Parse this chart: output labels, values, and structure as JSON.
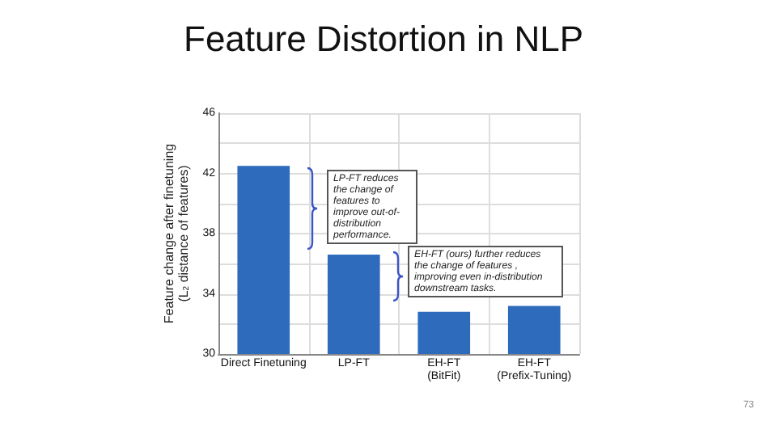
{
  "chart_data": {
    "type": "bar",
    "title": "Feature Distortion in NLP",
    "ylabel": "Feature change after finetuning\n(L$_{2}$ distance of features)",
    "categories": [
      "Direct Finetuning",
      "LP-FT",
      "EH-FT\n(BitFit)",
      "EH-FT\n(Prefix-Tuning)"
    ],
    "values": [
      42.5,
      36.6,
      32.8,
      33.2
    ],
    "color": "#2e6bbd",
    "ylim": [
      30,
      46
    ],
    "yticks": [
      30,
      {
        "value": 32,
        "label": null
      },
      34,
      {
        "value": 36,
        "label": null
      },
      38,
      {
        "value": 40,
        "label": null
      },
      42,
      {
        "value": 44,
        "label": null
      },
      46
    ],
    "grid": true,
    "annotations": [
      "LP-FT reduces the change of features to improve out-of-distribution performance.",
      "EH-FT (ours) further reduces the change of features , improving even in-distribution downstream tasks.",
      "73"
    ]
  }
}
